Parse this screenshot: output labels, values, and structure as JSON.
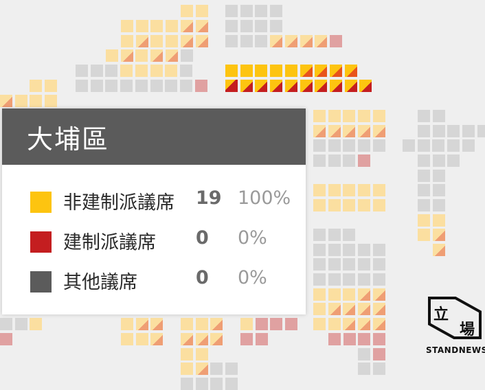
{
  "panel": {
    "district": "大埔區",
    "rows": [
      {
        "label": "非建制派議席",
        "count": "19",
        "percent": "100%",
        "color": "#fdc410"
      },
      {
        "label": "建制派議席",
        "count": "0",
        "percent": "0%",
        "color": "#c41e20"
      },
      {
        "label": "其他議席",
        "count": "0",
        "percent": "0%",
        "color": "#5b5b5b"
      }
    ]
  },
  "logo": {
    "char1": "立",
    "char2": "場",
    "text": "STANDNEWS"
  },
  "seat_colors": {
    "non_establishment_highlight": "#fdc410",
    "non_establishment_faded": "#fbdfa0",
    "establishment_faded": "#e0a1a1",
    "other": "#d6d6d6"
  },
  "highlighted_district": {
    "name": "大埔區",
    "seats": 19
  }
}
